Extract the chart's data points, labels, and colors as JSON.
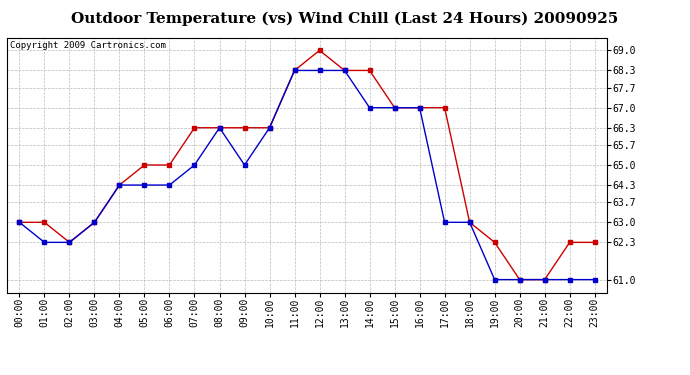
{
  "title": "Outdoor Temperature (vs) Wind Chill (Last 24 Hours) 20090925",
  "copyright": "Copyright 2009 Cartronics.com",
  "hours": [
    "00:00",
    "01:00",
    "02:00",
    "03:00",
    "04:00",
    "05:00",
    "06:00",
    "07:00",
    "08:00",
    "09:00",
    "10:00",
    "11:00",
    "12:00",
    "13:00",
    "14:00",
    "15:00",
    "16:00",
    "17:00",
    "18:00",
    "19:00",
    "20:00",
    "21:00",
    "22:00",
    "23:00"
  ],
  "temp": [
    63.0,
    63.0,
    62.3,
    63.0,
    64.3,
    65.0,
    65.0,
    66.3,
    66.3,
    66.3,
    66.3,
    68.3,
    69.0,
    68.3,
    68.3,
    67.0,
    67.0,
    67.0,
    63.0,
    62.3,
    61.0,
    61.0,
    62.3,
    62.3
  ],
  "windchill": [
    63.0,
    62.3,
    62.3,
    63.0,
    64.3,
    64.3,
    64.3,
    65.0,
    66.3,
    65.0,
    66.3,
    68.3,
    68.3,
    68.3,
    67.0,
    67.0,
    67.0,
    63.0,
    63.0,
    61.0,
    61.0,
    61.0,
    61.0,
    61.0
  ],
  "temp_color": "#cc0000",
  "windchill_color": "#0000cc",
  "bg_color": "#ffffff",
  "plot_bg_color": "#ffffff",
  "grid_color": "#bbbbbb",
  "ylim_min": 60.55,
  "ylim_max": 69.45,
  "yticks": [
    61.0,
    62.3,
    63.0,
    63.7,
    64.3,
    65.0,
    65.7,
    66.3,
    67.0,
    67.7,
    68.3,
    69.0
  ],
  "title_fontsize": 11,
  "copyright_fontsize": 6.5,
  "tick_fontsize": 7,
  "marker": "s",
  "marker_size": 2.5,
  "linewidth": 1.0
}
